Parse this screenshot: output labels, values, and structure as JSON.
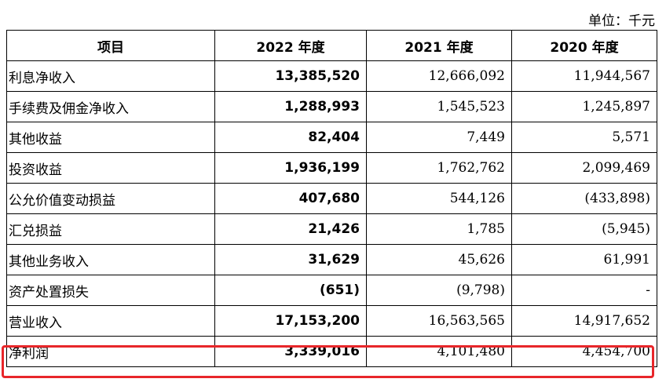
{
  "unit_label": "单位：千元",
  "table": {
    "headers": [
      "项目",
      "2022 年度",
      "2021 年度",
      "2020 年度"
    ],
    "rows": [
      {
        "item": "利息净收入",
        "y2022": "13,385,520",
        "y2021": "12,666,092",
        "y2020": "11,944,567"
      },
      {
        "item": "手续费及佣金净收入",
        "y2022": "1,288,993",
        "y2021": "1,545,523",
        "y2020": "1,245,897"
      },
      {
        "item": "其他收益",
        "y2022": "82,404",
        "y2021": "7,449",
        "y2020": "5,571"
      },
      {
        "item": "投资收益",
        "y2022": "1,936,199",
        "y2021": "1,762,762",
        "y2020": "2,099,469"
      },
      {
        "item": "公允价值变动损益",
        "y2022": "407,680",
        "y2021": "544,126",
        "y2020": "(433,898)"
      },
      {
        "item": "汇兑损益",
        "y2022": "21,426",
        "y2021": "1,785",
        "y2020": "(5,945)"
      },
      {
        "item": "其他业务收入",
        "y2022": "31,629",
        "y2021": "45,626",
        "y2020": "61,991"
      },
      {
        "item": "资产处置损失",
        "y2022": "(651)",
        "y2021": "(9,798)",
        "y2020": "-"
      },
      {
        "item": "营业收入",
        "y2022": "17,153,200",
        "y2021": "16,563,565",
        "y2020": "14,917,652"
      },
      {
        "item": "净利润",
        "y2022": "3,339,016",
        "y2021": "4,101,480",
        "y2020": "4,454,700"
      }
    ]
  },
  "highlight": {
    "row_item": "净利润",
    "color": "#e8262a"
  }
}
